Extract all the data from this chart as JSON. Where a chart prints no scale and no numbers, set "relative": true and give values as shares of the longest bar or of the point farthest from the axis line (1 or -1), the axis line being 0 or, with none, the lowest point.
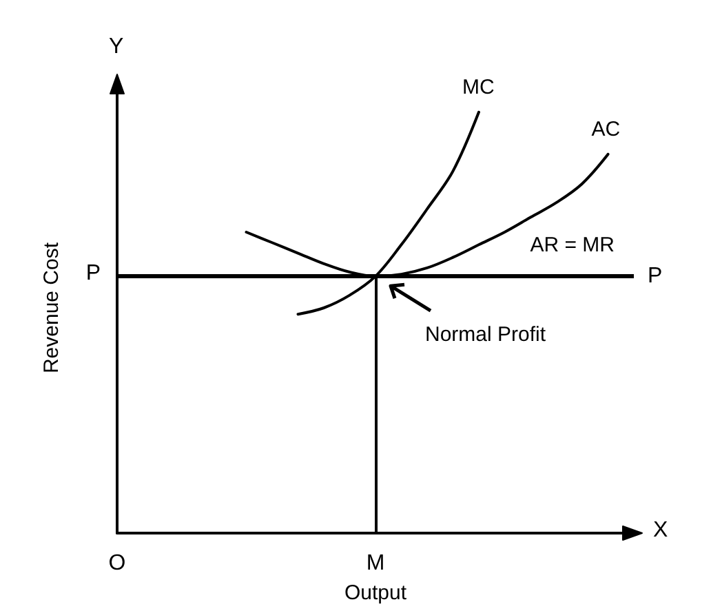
{
  "chart_data": {
    "type": "line",
    "relative": true,
    "xlabel": "Output",
    "ylabel": "Revenue Cost",
    "categories": [
      "O",
      null,
      null,
      null,
      null,
      null,
      null,
      null,
      null,
      null,
      "M",
      null,
      null,
      null,
      null,
      null,
      null,
      null,
      null,
      null,
      null
    ],
    "series": [
      {
        "name": "MC",
        "color": "#000000",
        "values": [
          null,
          null,
          null,
          null,
          null,
          null,
          null,
          0.52,
          0.535,
          0.565,
          0.61,
          0.685,
          0.77,
          0.86,
          1,
          null,
          null,
          null,
          null,
          null,
          null
        ]
      },
      {
        "name": "AC",
        "color": "#000000",
        "values": [
          null,
          null,
          null,
          null,
          null,
          0.715,
          0.69,
          0.665,
          0.64,
          0.62,
          0.61,
          0.615,
          0.63,
          0.655,
          0.685,
          0.715,
          0.75,
          0.785,
          0.83,
          0.9,
          null
        ]
      }
    ],
    "ref_lines": [
      {
        "axis": "y",
        "value": 0.61,
        "label": "P",
        "color": "#000000"
      },
      {
        "axis": "x",
        "value": "M",
        "color": "#000000"
      }
    ],
    "annotations": [
      "Y",
      "X",
      "P",
      "AR = MR",
      "Normal Profit"
    ],
    "legend": false,
    "grid": false,
    "marker": "none",
    "line_style": "solid"
  }
}
